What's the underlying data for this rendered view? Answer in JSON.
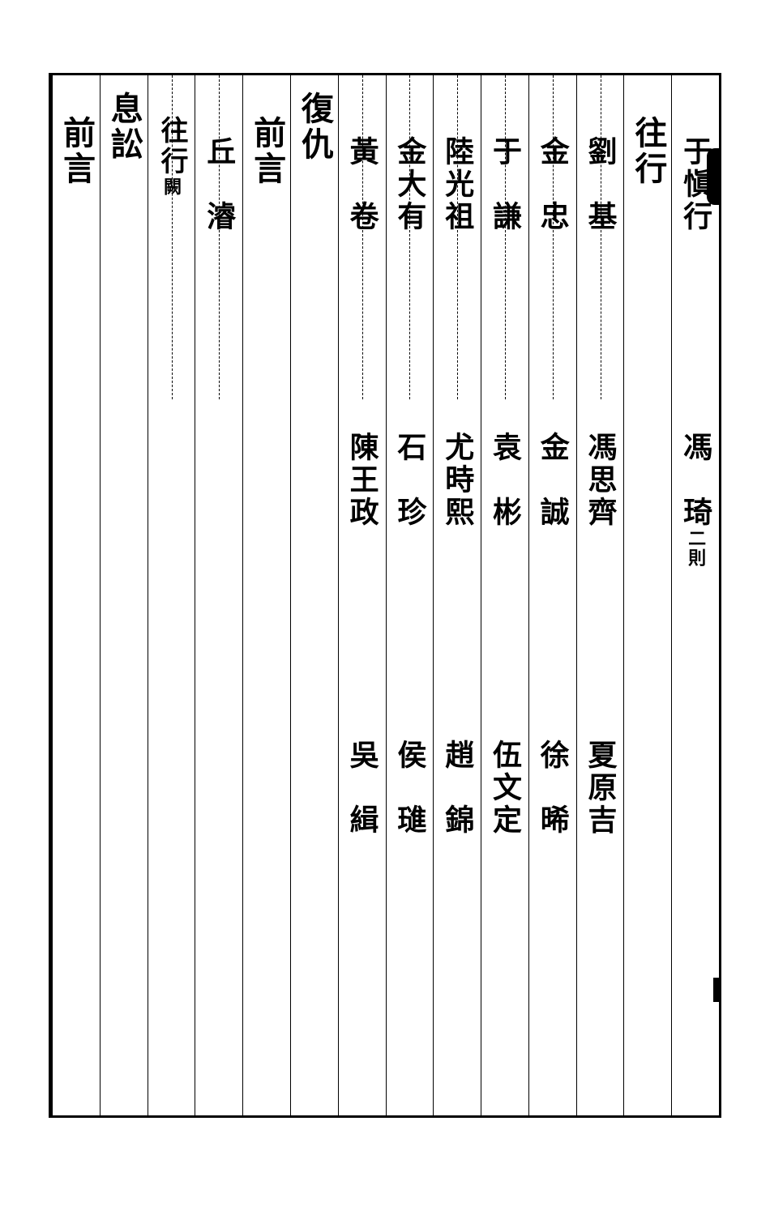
{
  "side_note": "二則",
  "columns": [
    {
      "type": "names",
      "cells": [
        "于愼行",
        "馮　琦",
        ""
      ],
      "small_note_col": "二則",
      "small_note_after_cell": 1
    },
    {
      "type": "heading",
      "text": "往行"
    },
    {
      "type": "names",
      "cells": [
        "劉　基",
        "馮思齊",
        "夏原吉"
      ]
    },
    {
      "type": "names",
      "cells": [
        "金　忠",
        "金　誠",
        "徐　晞"
      ]
    },
    {
      "type": "names",
      "cells": [
        "于　謙",
        "袁　彬",
        "伍文定"
      ]
    },
    {
      "type": "names",
      "cells": [
        "陸光祖",
        "尤時熙",
        "趙　錦"
      ]
    },
    {
      "type": "names",
      "cells": [
        "金大有",
        "石　珍",
        "侯　璡"
      ]
    },
    {
      "type": "names",
      "cells": [
        "黃　卷",
        "陳王政",
        "吳　緝"
      ]
    },
    {
      "type": "heading-high",
      "text": "復仇"
    },
    {
      "type": "heading",
      "text": "前言"
    },
    {
      "type": "names",
      "cells": [
        "丘　濬",
        "",
        ""
      ]
    },
    {
      "type": "split-heading",
      "right": "往行",
      "right_note": "闕",
      "left": ""
    },
    {
      "type": "heading-high",
      "text": "息訟"
    },
    {
      "type": "heading",
      "text": "前言"
    }
  ],
  "style": {
    "background": "#ffffff",
    "border_color": "#000000",
    "font_main_size": 36,
    "font_heading_size": 40,
    "font_small_size": 22
  }
}
